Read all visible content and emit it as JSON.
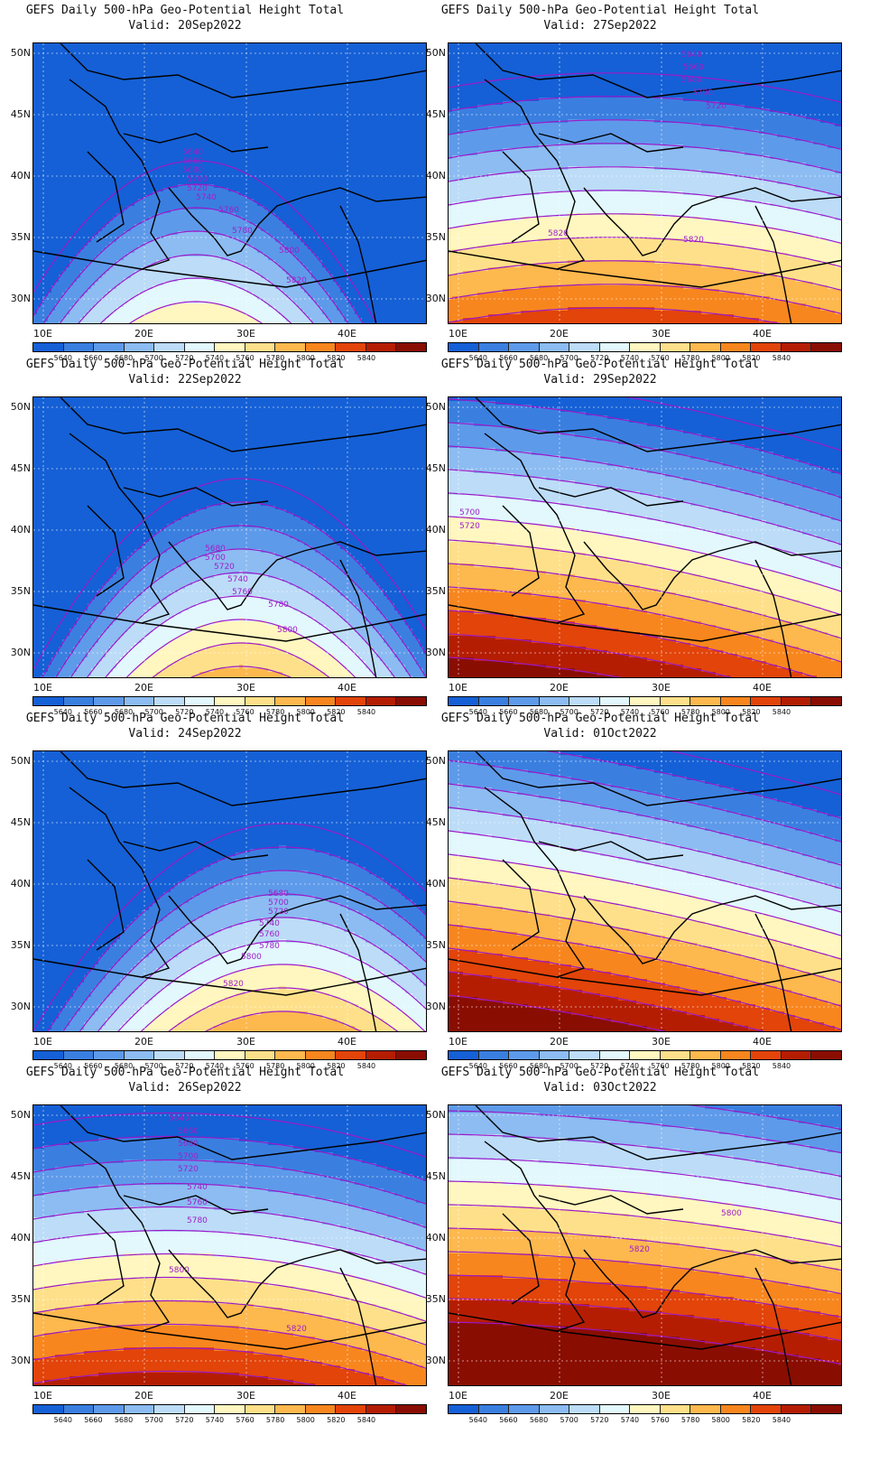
{
  "title_line": "GEFS Daily 500-hPa Geo-Potential Height Total",
  "lat_labels": [
    "50N",
    "45N",
    "40N",
    "35N",
    "30N"
  ],
  "lon_labels": [
    "10E",
    "20E",
    "30E",
    "40E"
  ],
  "colorbar": {
    "labels": [
      "5640",
      "5660",
      "5680",
      "5700",
      "5720",
      "5740",
      "5760",
      "5780",
      "5800",
      "5820",
      "5840"
    ],
    "colors": [
      "#1560d6",
      "#3a7fe0",
      "#5e9aea",
      "#8cbcf2",
      "#bcdcf8",
      "#e2f8fd",
      "#fff7bf",
      "#ffe08a",
      "#fdb84e",
      "#f8861e",
      "#e2440a",
      "#b51d03",
      "#8a0d02"
    ]
  },
  "panels": [
    {
      "valid": "Valid: 20Sep2022",
      "contour_labels": [
        "5640",
        "5660",
        "5680",
        "5700",
        "5720",
        "5740",
        "5760",
        "5780",
        "5800",
        "5820"
      ]
    },
    {
      "valid": "Valid: 27Sep2022",
      "contour_labels": [
        "5640",
        "5660",
        "5680",
        "5700",
        "5720",
        "5820",
        "5820"
      ]
    },
    {
      "valid": "Valid: 22Sep2022",
      "contour_labels": [
        "5680",
        "5700",
        "5720",
        "5740",
        "5760",
        "5780",
        "5800"
      ]
    },
    {
      "valid": "Valid: 29Sep2022",
      "contour_labels": [
        "5700",
        "5720"
      ]
    },
    {
      "valid": "Valid: 24Sep2022",
      "contour_labels": [
        "5680",
        "5700",
        "5720",
        "5740",
        "5760",
        "5780",
        "5800",
        "5820"
      ]
    },
    {
      "valid": "Valid: 01Oct2022",
      "contour_labels": []
    },
    {
      "valid": "Valid: 26Sep2022",
      "contour_labels": [
        "5640",
        "5660",
        "5680",
        "5700",
        "5720",
        "5740",
        "5760",
        "5780",
        "5800",
        "5820"
      ]
    },
    {
      "valid": "Valid: 03Oct2022",
      "contour_labels": [
        "5800",
        "5820"
      ]
    }
  ]
}
